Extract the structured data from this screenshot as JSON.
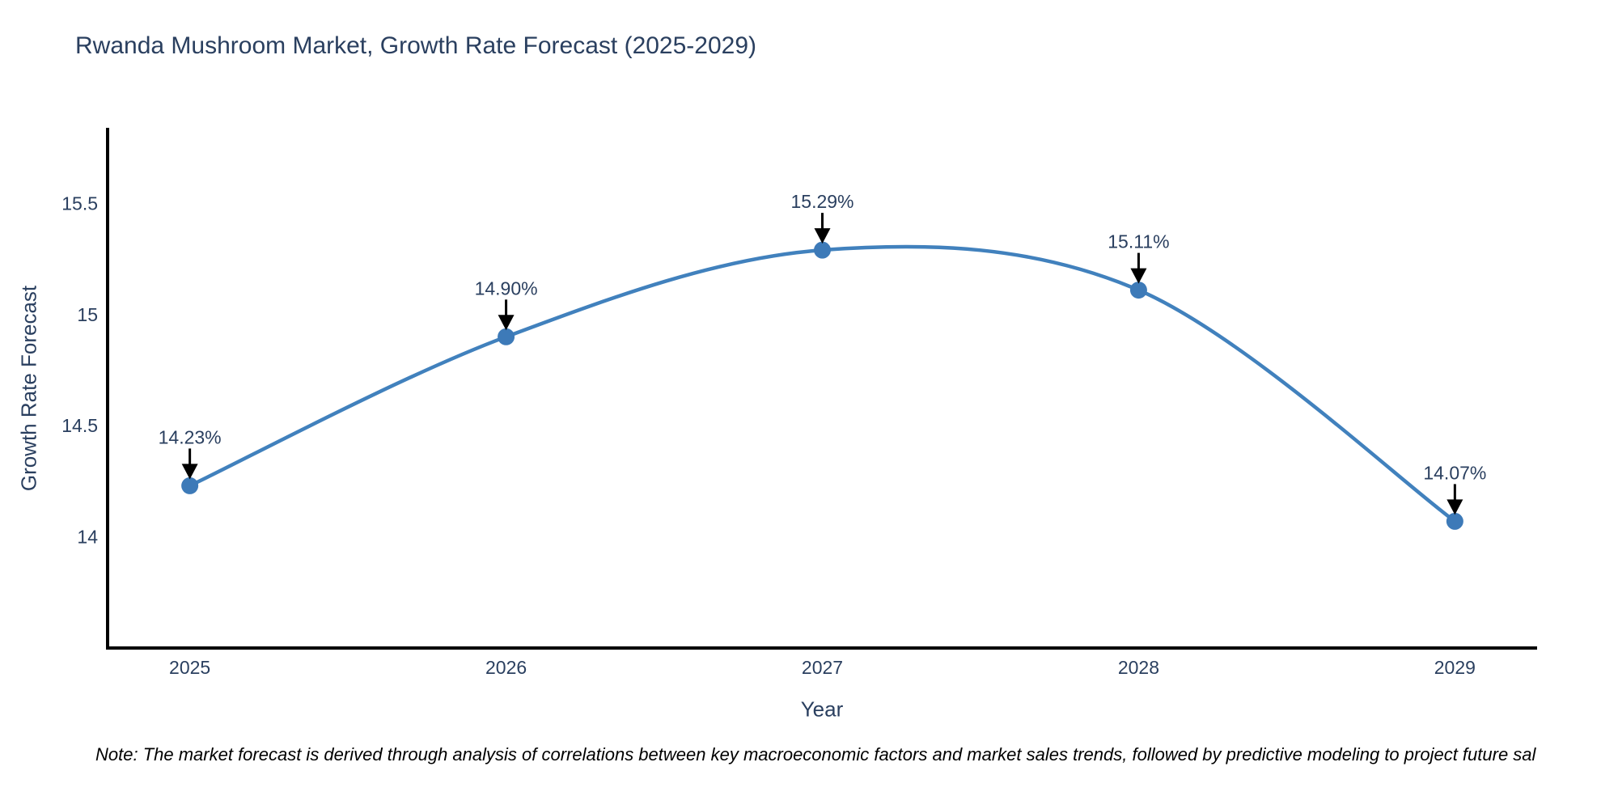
{
  "page": {
    "background": "#ffffff"
  },
  "chart_data": {
    "type": "line",
    "title": "Rwanda Mushroom Market, Growth Rate Forecast (2025-2029)",
    "xlabel": "Year",
    "ylabel": "Growth Rate Forecast",
    "x": [
      2025,
      2026,
      2027,
      2028,
      2029
    ],
    "series": [
      {
        "name": "Growth Rate Forecast",
        "values": [
          14.23,
          14.9,
          15.29,
          15.11,
          14.07
        ],
        "point_labels": [
          "14.23%",
          "14.90%",
          "15.29%",
          "15.11%",
          "14.07%"
        ]
      }
    ],
    "line_shape": "spline",
    "markers": true,
    "grid": false,
    "legend_position": "none",
    "xticks": {
      "values": [
        2025,
        2026,
        2027,
        2028,
        2029
      ],
      "labels": [
        "2025",
        "2026",
        "2027",
        "2028",
        "2029"
      ]
    },
    "yticks": {
      "values": [
        14,
        14.5,
        15,
        15.5
      ],
      "labels": [
        "14",
        "14.5",
        "15",
        "15.5"
      ]
    },
    "xlim": [
      2024.74,
      2029.26
    ],
    "ylim": [
      13.5,
      15.84
    ],
    "colors": {
      "line": "#4181bd",
      "marker": "#3d7ab8",
      "axis_line": "#000000",
      "tick_text": "#2a3f5f",
      "annotation_text": "#2a3f5f",
      "annotation_arrow": "#000000",
      "title_text": "#2a3f5f",
      "note_text": "#000000",
      "background": "#ffffff"
    }
  },
  "note": {
    "text": "Note: The market forecast is derived through analysis of correlations between key macroeconomic factors and market sales trends, followed by predictive modeling to project future sal"
  }
}
